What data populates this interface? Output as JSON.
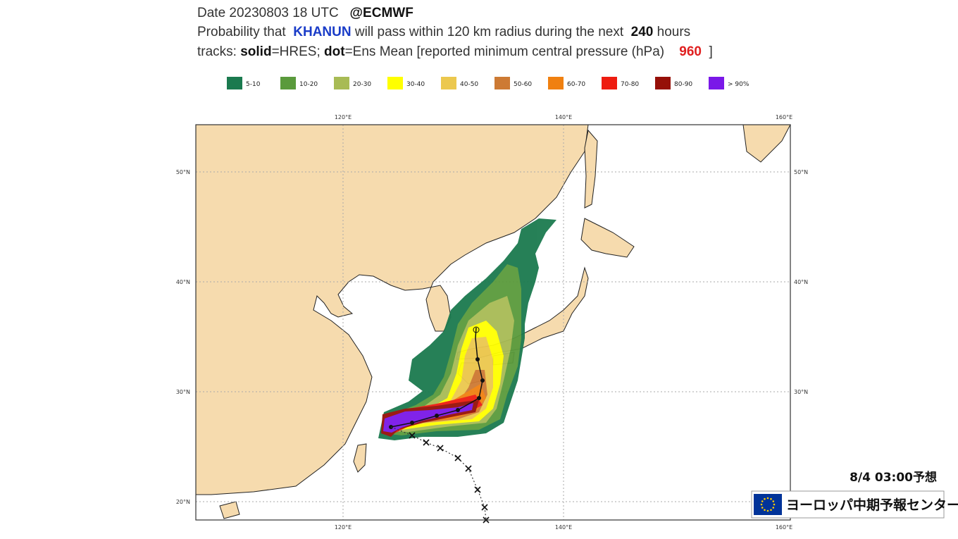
{
  "header": {
    "line1": {
      "date": "Date 20230803 18 UTC",
      "source": "@ECMWF"
    },
    "line2": {
      "prefix": "Probability that",
      "storm": "KHANUN",
      "middle": "will pass within 120 km radius during the next",
      "hours": "240",
      "suffix": "hours"
    },
    "line3": {
      "tracks": "tracks:",
      "solid": "solid",
      "hres": "=HRES;",
      "dot": "dot",
      "ens": "=Ens Mean [reported minimum central pressure (hPa)",
      "pressure": "960",
      "close": "]"
    }
  },
  "legend": [
    {
      "label": "5-10",
      "color": "#1b7a4f"
    },
    {
      "label": "10-20",
      "color": "#5a9a3c"
    },
    {
      "label": "20-30",
      "color": "#a8bb55"
    },
    {
      "label": "30-40",
      "color": "#ffff00"
    },
    {
      "label": "40-50",
      "color": "#ecc84e"
    },
    {
      "label": "50-60",
      "color": "#cd7a34"
    },
    {
      "label": "60-70",
      "color": "#f08010"
    },
    {
      "label": "70-80",
      "color": "#ee1c10"
    },
    {
      "label": "80-90",
      "color": "#961008"
    },
    {
      "label": "> 90%",
      "color": "#7a18e8"
    }
  ],
  "map": {
    "lon_labels": [
      "120°E",
      "140°E",
      "160°E"
    ],
    "lat_labels": [
      "50°N",
      "40°N",
      "30°N",
      "20°N"
    ]
  },
  "overlay": {
    "forecast": "8/4  03:00予想",
    "center": "ヨーロッパ中期予報センター"
  }
}
